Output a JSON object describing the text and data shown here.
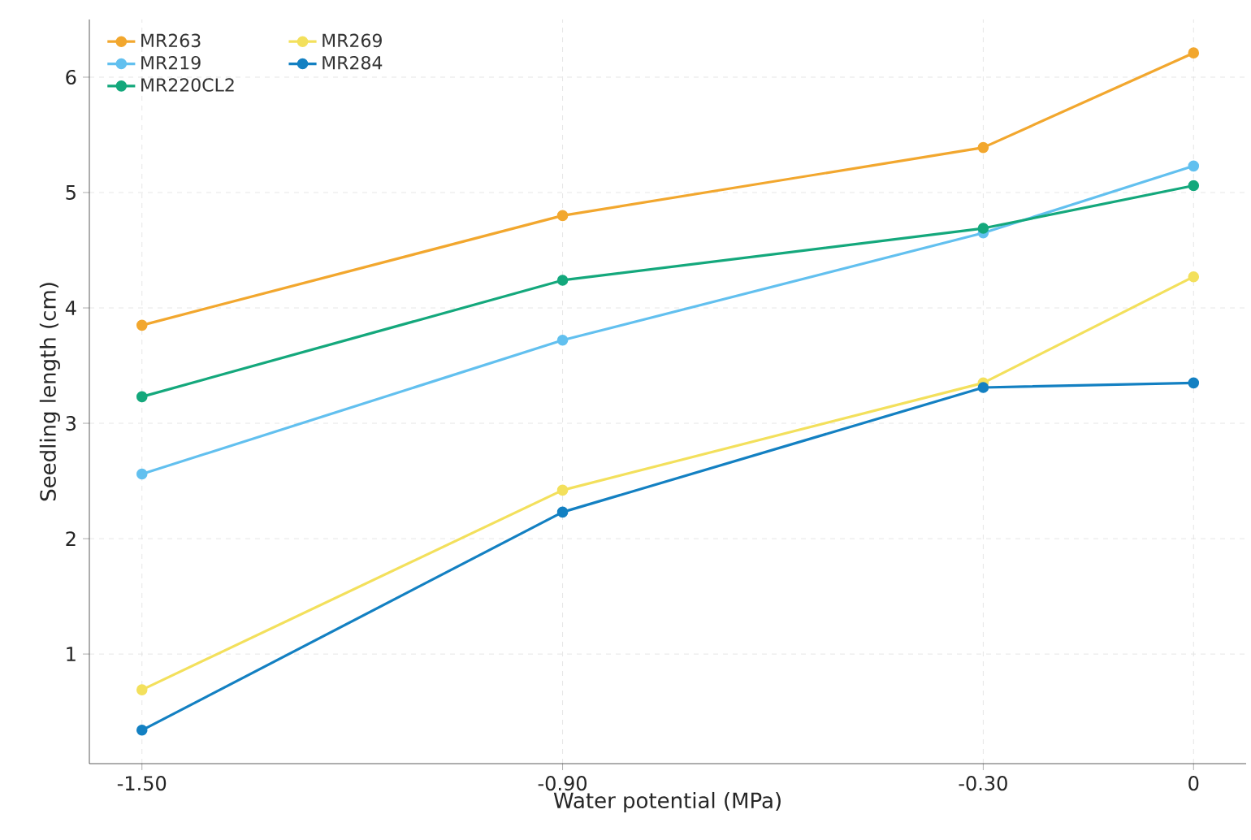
{
  "chart_data": {
    "type": "line",
    "xlabel": "Water potential (MPa)",
    "ylabel": "Seedling length (cm)",
    "x": [
      -1.5,
      -0.9,
      -0.3,
      0
    ],
    "series": [
      {
        "name": "MR263",
        "color": "#f2a72e",
        "values": [
          3.85,
          4.8,
          5.39,
          6.21
        ]
      },
      {
        "name": "MR219",
        "color": "#62c0ef",
        "values": [
          2.56,
          3.72,
          4.65,
          5.23
        ]
      },
      {
        "name": "MR220CL2",
        "color": "#14a87c",
        "values": [
          3.23,
          4.24,
          4.69,
          5.06
        ]
      },
      {
        "name": "MR269",
        "color": "#f3e05c",
        "values": [
          0.69,
          2.42,
          3.35,
          4.27
        ]
      },
      {
        "name": "MR284",
        "color": "#1380c2",
        "values": [
          0.34,
          2.23,
          3.31,
          3.35
        ]
      }
    ],
    "xlim": [
      -1.575,
      0.075
    ],
    "ylim": [
      0.05,
      6.5
    ],
    "xticks": [
      {
        "value": -1.5,
        "label": "-1.50"
      },
      {
        "value": -0.9,
        "label": "-0.90"
      },
      {
        "value": -0.3,
        "label": "-0.30"
      },
      0
    ],
    "yticks": [
      1,
      2,
      3,
      4,
      5,
      6
    ],
    "grid": true,
    "legend": "top left",
    "marker": "circle",
    "line_style": "solid"
  }
}
